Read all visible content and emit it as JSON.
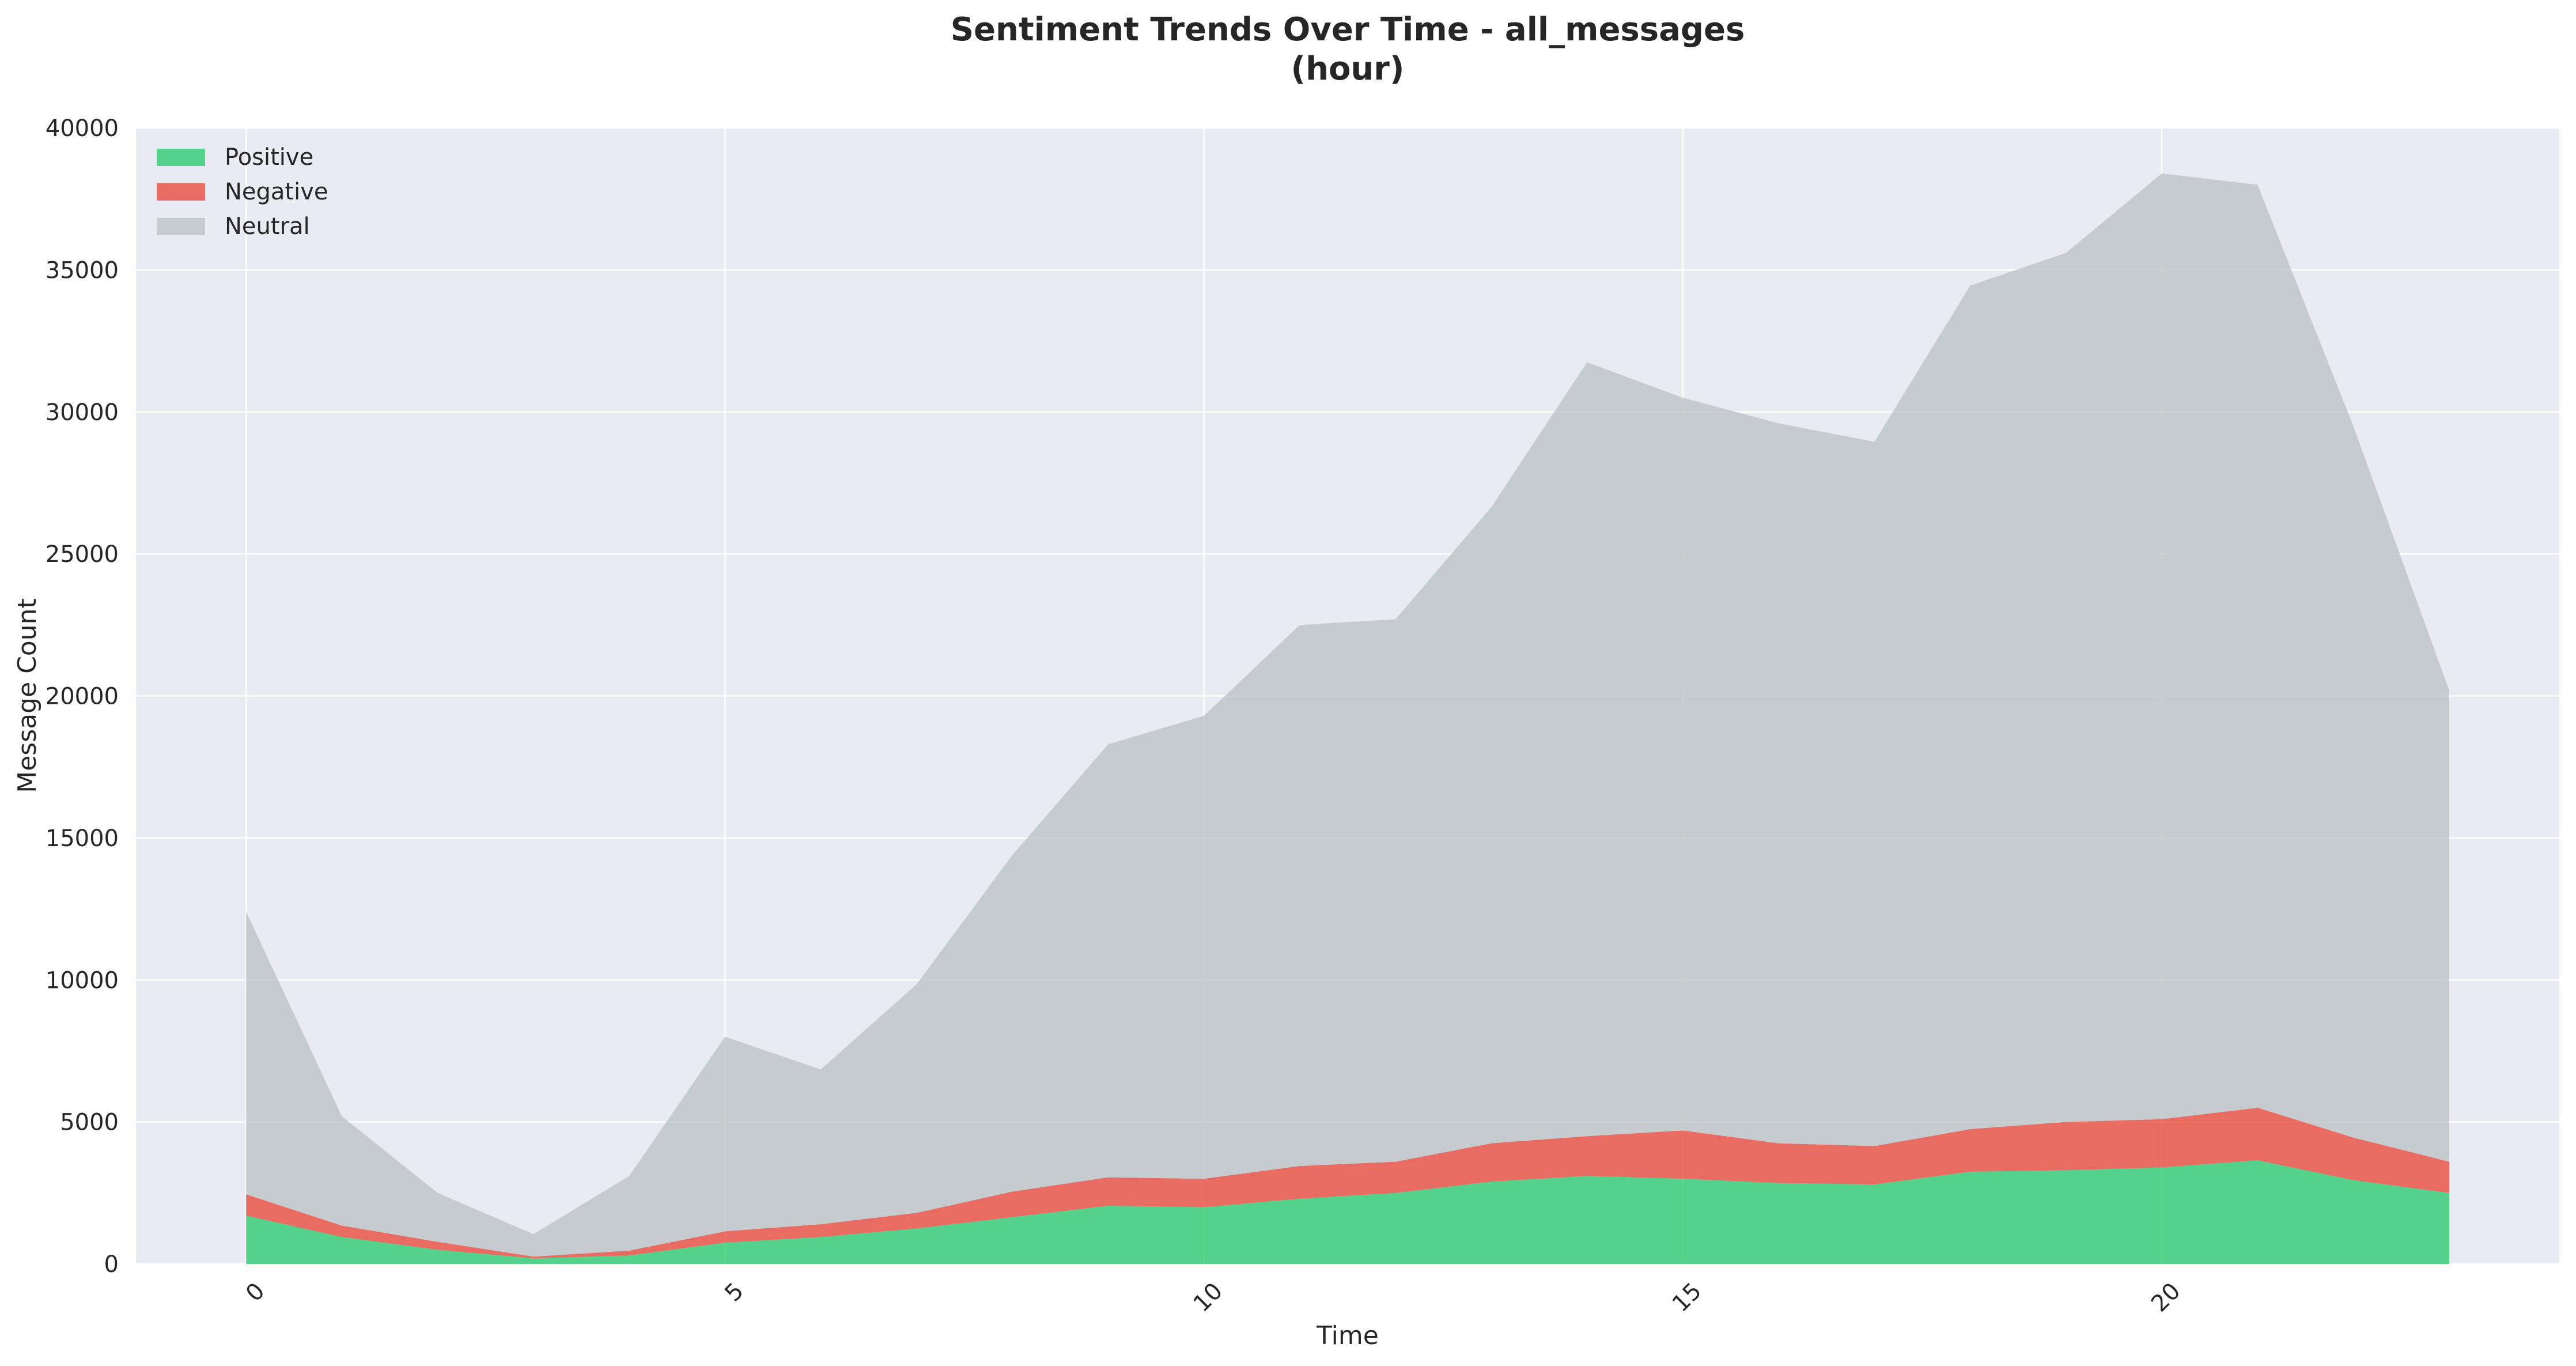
{
  "chart_data": {
    "type": "area",
    "stacked": true,
    "title": "Sentiment Trends Over Time - all_messages",
    "subtitle": "(hour)",
    "xlabel": "Time",
    "ylabel": "Message Count",
    "x": [
      0,
      1,
      2,
      3,
      4,
      5,
      6,
      7,
      8,
      9,
      10,
      11,
      12,
      13,
      14,
      15,
      16,
      17,
      18,
      19,
      20,
      21,
      22,
      23
    ],
    "xlim": [
      -1.15,
      24.15
    ],
    "ylim": [
      0,
      40000
    ],
    "x_ticks": [
      0,
      5,
      10,
      15,
      20
    ],
    "x_tick_labels": [
      "0",
      "5",
      "10",
      "15",
      "20"
    ],
    "y_ticks": [
      0,
      5000,
      10000,
      15000,
      20000,
      25000,
      30000,
      35000,
      40000
    ],
    "y_tick_labels": [
      "0",
      "5000",
      "10000",
      "15000",
      "20000",
      "25000",
      "30000",
      "35000",
      "40000"
    ],
    "grid": true,
    "legend_position": "top-left",
    "plot_background": "#eaeaf2",
    "series": [
      {
        "name": "Positive",
        "color": "#2ecc71",
        "values": [
          1700,
          950,
          500,
          200,
          300,
          750,
          950,
          1250,
          1650,
          2050,
          2000,
          2300,
          2500,
          2900,
          3100,
          3000,
          2850,
          2800,
          3250,
          3300,
          3400,
          3650,
          2950,
          2500
        ]
      },
      {
        "name": "Negative",
        "color": "#e74c3c",
        "values": [
          750,
          400,
          280,
          60,
          170,
          400,
          450,
          550,
          900,
          1000,
          1000,
          1150,
          1100,
          1350,
          1400,
          1700,
          1400,
          1350,
          1500,
          1700,
          1700,
          1850,
          1500,
          1100
        ]
      },
      {
        "name": "Neutral",
        "color": "#bdc3c7",
        "values": [
          9950,
          3850,
          1720,
          790,
          2630,
          6850,
          5450,
          8050,
          11850,
          15250,
          16300,
          19050,
          19100,
          22400,
          27250,
          25800,
          25350,
          24800,
          29700,
          30600,
          33300,
          32500,
          25050,
          16600
        ]
      }
    ]
  }
}
